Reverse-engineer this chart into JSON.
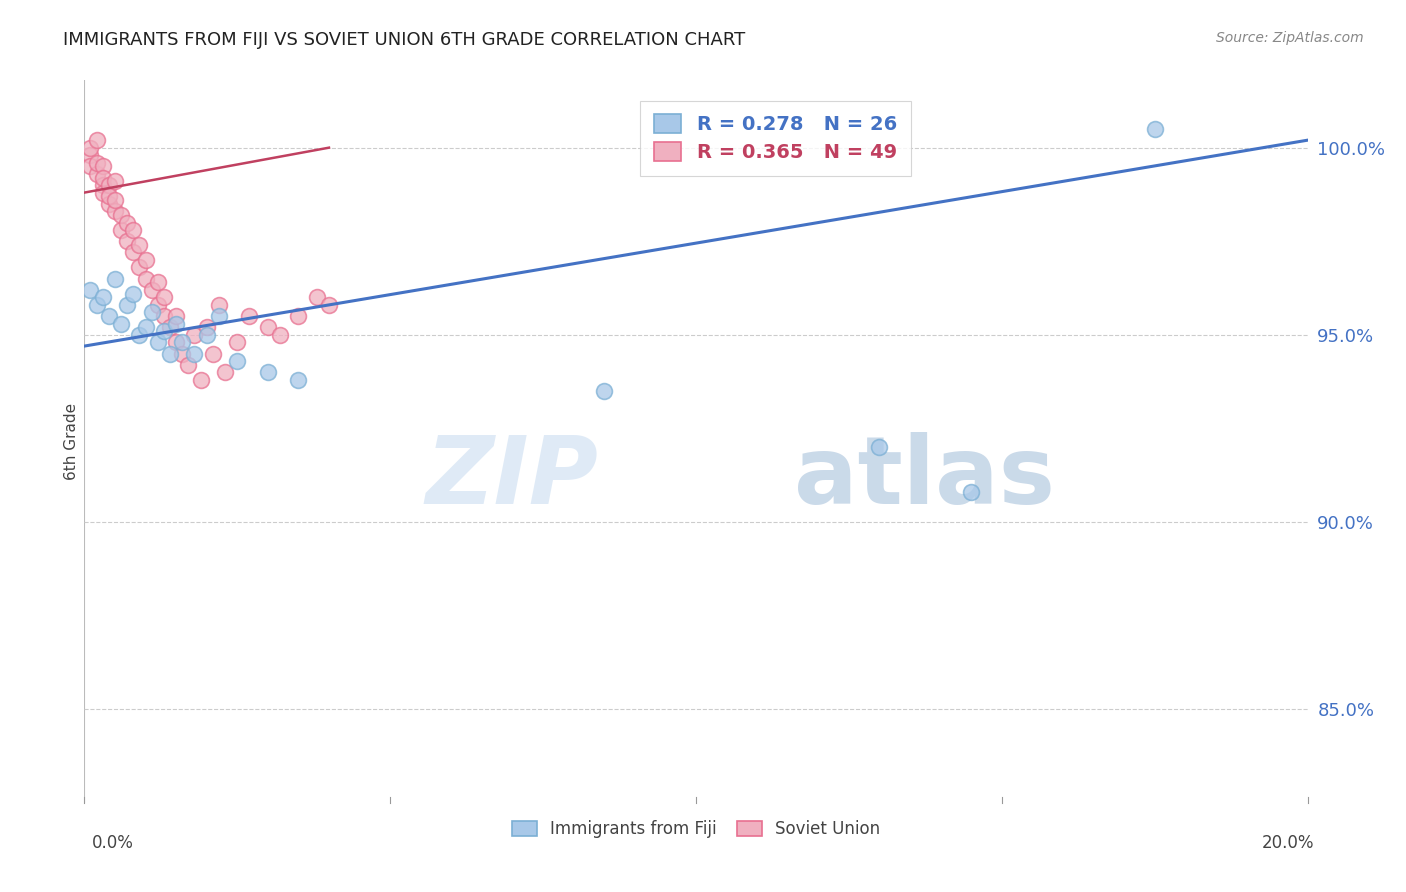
{
  "title": "IMMIGRANTS FROM FIJI VS SOVIET UNION 6TH GRADE CORRELATION CHART",
  "source": "Source: ZipAtlas.com",
  "ylabel": "6th Grade",
  "yticks": [
    85.0,
    90.0,
    95.0,
    100.0
  ],
  "ytick_labels": [
    "85.0%",
    "90.0%",
    "95.0%",
    "100.0%"
  ],
  "xlim": [
    0.0,
    0.2
  ],
  "ylim": [
    82.5,
    101.8
  ],
  "fiji_color": "#a8c8e8",
  "fiji_edge_color": "#7bafd4",
  "soviet_color": "#f0b0c0",
  "soviet_edge_color": "#e87090",
  "fiji_line_color": "#4472c4",
  "soviet_line_color": "#c04060",
  "fiji_R": 0.278,
  "fiji_N": 26,
  "soviet_R": 0.365,
  "soviet_N": 49,
  "watermark_zip": "ZIP",
  "watermark_atlas": "atlas",
  "fiji_scatter_x": [
    0.001,
    0.002,
    0.003,
    0.004,
    0.005,
    0.006,
    0.007,
    0.008,
    0.009,
    0.01,
    0.011,
    0.012,
    0.013,
    0.014,
    0.015,
    0.016,
    0.018,
    0.02,
    0.022,
    0.025,
    0.03,
    0.035,
    0.085,
    0.13,
    0.145,
    0.175
  ],
  "fiji_scatter_y": [
    96.2,
    95.8,
    96.0,
    95.5,
    96.5,
    95.3,
    95.8,
    96.1,
    95.0,
    95.2,
    95.6,
    94.8,
    95.1,
    94.5,
    95.3,
    94.8,
    94.5,
    95.0,
    95.5,
    94.3,
    94.0,
    93.8,
    93.5,
    92.0,
    90.8,
    100.5
  ],
  "soviet_scatter_x": [
    0.001,
    0.001,
    0.001,
    0.002,
    0.002,
    0.002,
    0.003,
    0.003,
    0.003,
    0.003,
    0.004,
    0.004,
    0.004,
    0.005,
    0.005,
    0.005,
    0.006,
    0.006,
    0.007,
    0.007,
    0.008,
    0.008,
    0.009,
    0.009,
    0.01,
    0.01,
    0.011,
    0.012,
    0.012,
    0.013,
    0.013,
    0.014,
    0.015,
    0.015,
    0.016,
    0.017,
    0.018,
    0.019,
    0.02,
    0.021,
    0.022,
    0.023,
    0.025,
    0.027,
    0.03,
    0.032,
    0.035,
    0.038,
    0.04
  ],
  "soviet_scatter_y": [
    99.8,
    99.5,
    100.0,
    99.3,
    99.6,
    100.2,
    99.0,
    99.5,
    98.8,
    99.2,
    98.5,
    99.0,
    98.7,
    98.3,
    98.6,
    99.1,
    97.8,
    98.2,
    97.5,
    98.0,
    97.2,
    97.8,
    96.8,
    97.4,
    96.5,
    97.0,
    96.2,
    95.8,
    96.4,
    95.5,
    96.0,
    95.2,
    94.8,
    95.5,
    94.5,
    94.2,
    95.0,
    93.8,
    95.2,
    94.5,
    95.8,
    94.0,
    94.8,
    95.5,
    95.2,
    95.0,
    95.5,
    96.0,
    95.8
  ],
  "fiji_trend_x": [
    0.0,
    0.2
  ],
  "fiji_trend_y": [
    94.7,
    100.2
  ],
  "soviet_trend_x": [
    0.0,
    0.04
  ],
  "soviet_trend_y": [
    98.8,
    100.0
  ]
}
